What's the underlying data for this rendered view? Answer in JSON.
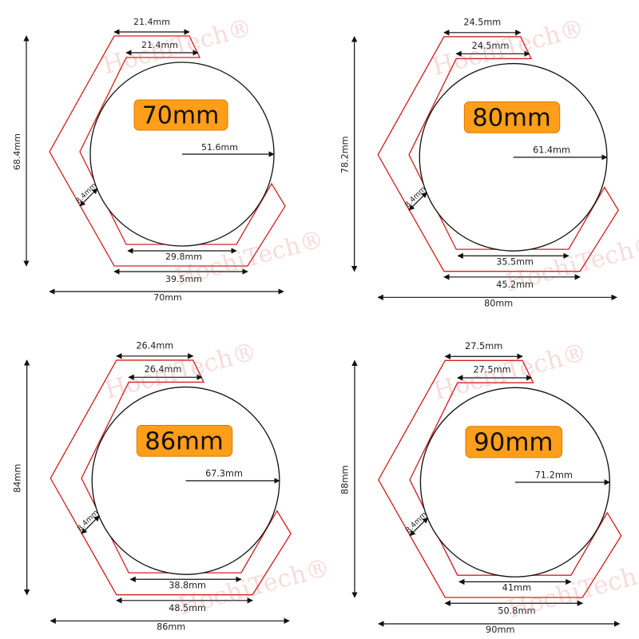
{
  "watermark": "HochiTech®",
  "panels": [
    {
      "size": "70mm",
      "top_outer": "21.4mm",
      "top_inner": "21.4mm",
      "radius": "51.6mm",
      "height": "68.4mm",
      "thickness": "8.4mm",
      "bottom_inner": "29.8mm",
      "bottom_outer": "39.5mm",
      "width": "70mm"
    },
    {
      "size": "80mm",
      "top_outer": "24.5mm",
      "top_inner": "24.5mm",
      "radius": "61.4mm",
      "height": "78.2mm",
      "thickness": "8.4mm",
      "bottom_inner": "35.5mm",
      "bottom_outer": "45.2mm",
      "width": "80mm"
    },
    {
      "size": "86mm",
      "top_outer": "26.4mm",
      "top_inner": "26.4mm",
      "radius": "67.3mm",
      "height": "84mm",
      "thickness": "8.4mm",
      "bottom_inner": "38.8mm",
      "bottom_outer": "48.5mm",
      "width": "86mm"
    },
    {
      "size": "90mm",
      "top_outer": "27.5mm",
      "top_inner": "27.5mm",
      "radius": "71.2mm",
      "height": "88mm",
      "thickness": "8.4mm",
      "bottom_inner": "41mm",
      "bottom_outer": "50.8mm",
      "width": "90mm"
    }
  ]
}
